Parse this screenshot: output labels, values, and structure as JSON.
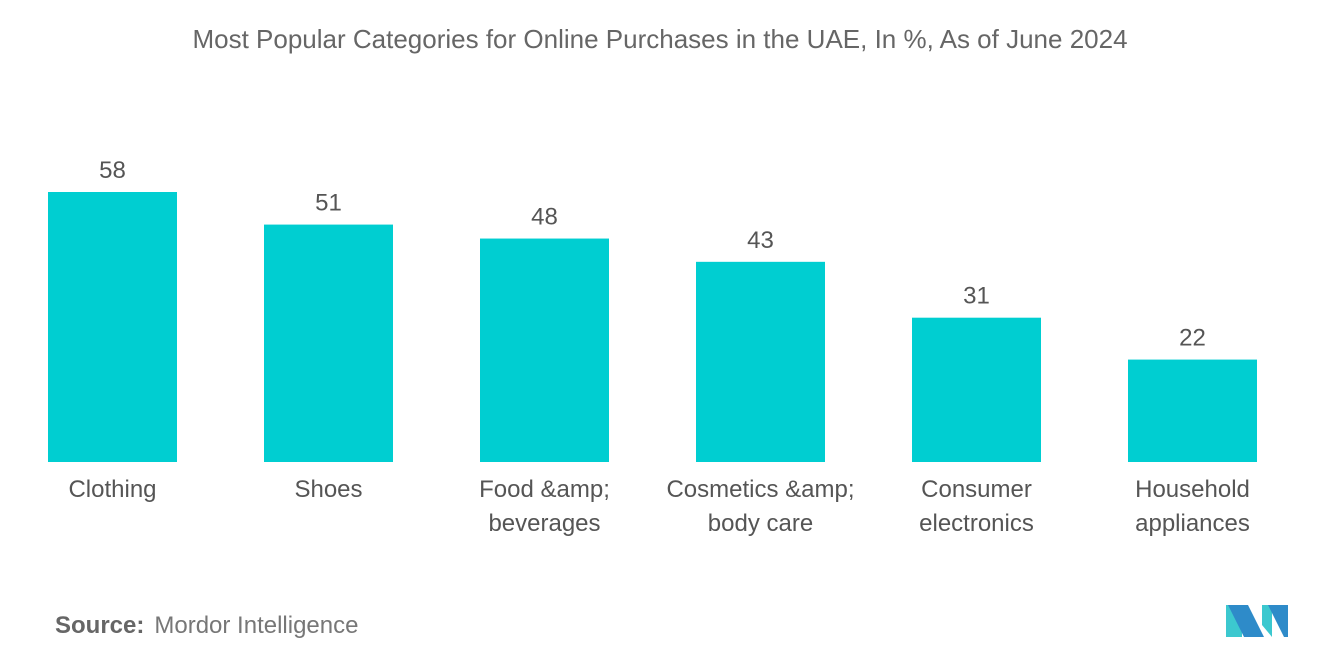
{
  "chart_data": {
    "type": "bar",
    "title": "Most Popular Categories for Online Purchases in the UAE, In %, As of June 2024",
    "categories": [
      [
        "Clothing"
      ],
      [
        "Shoes"
      ],
      [
        "Food &amp;",
        "beverages"
      ],
      [
        "Cosmetics &amp;",
        "body care"
      ],
      [
        "Consumer",
        "electronics"
      ],
      [
        "Household",
        "appliances"
      ]
    ],
    "values": [
      58,
      51,
      48,
      43,
      31,
      22
    ],
    "ylim": [
      0,
      58
    ],
    "grid": false,
    "bar_color": "#00CED1"
  },
  "source": {
    "label": "Source:",
    "text": "Mordor Intelligence"
  },
  "logo": {
    "colors": [
      "#2E8BC9",
      "#3CC8CF"
    ]
  }
}
